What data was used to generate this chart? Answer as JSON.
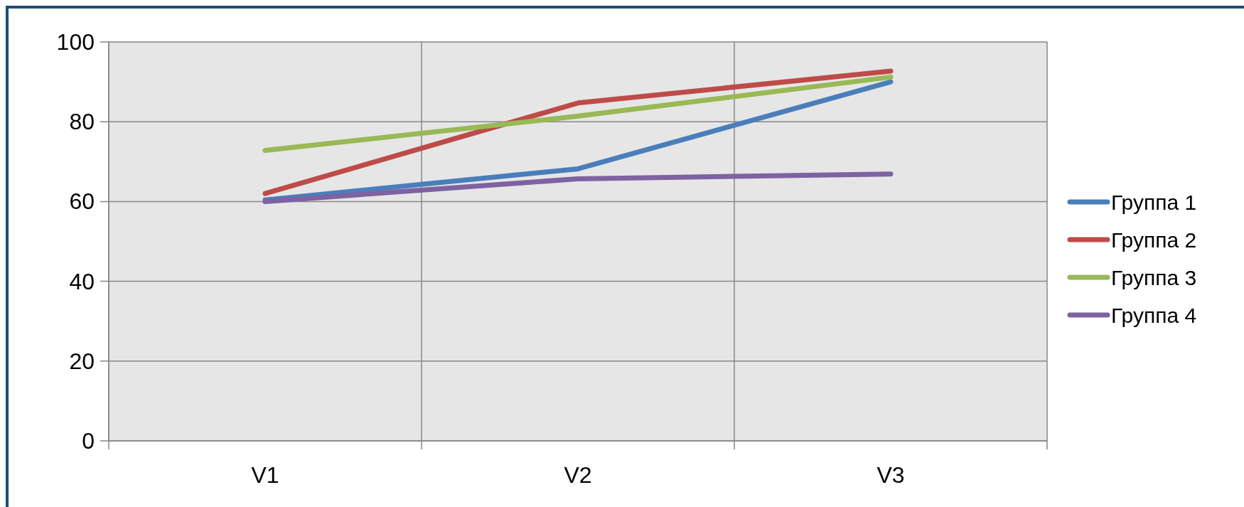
{
  "chart_data": {
    "type": "line",
    "categories": [
      "V1",
      "V2",
      "V3"
    ],
    "series": [
      {
        "name": "Группа 1",
        "color": "#4a7ebb",
        "values": [
          60.4,
          68.2,
          90
        ]
      },
      {
        "name": "Группа 2",
        "color": "#be4b48",
        "values": [
          62,
          84.7,
          92.7
        ]
      },
      {
        "name": "Группа 3",
        "color": "#98b954",
        "values": [
          72.8,
          81.4,
          91.2
        ]
      },
      {
        "name": "Группа 4",
        "color": "#7e62a1",
        "values": [
          60,
          65.7,
          66.9
        ]
      }
    ],
    "ylim": [
      0,
      100
    ],
    "yticks": [
      0,
      20,
      40,
      60,
      80,
      100
    ],
    "grid": true,
    "legend": "right",
    "marker": "none",
    "line_style": "solid"
  }
}
